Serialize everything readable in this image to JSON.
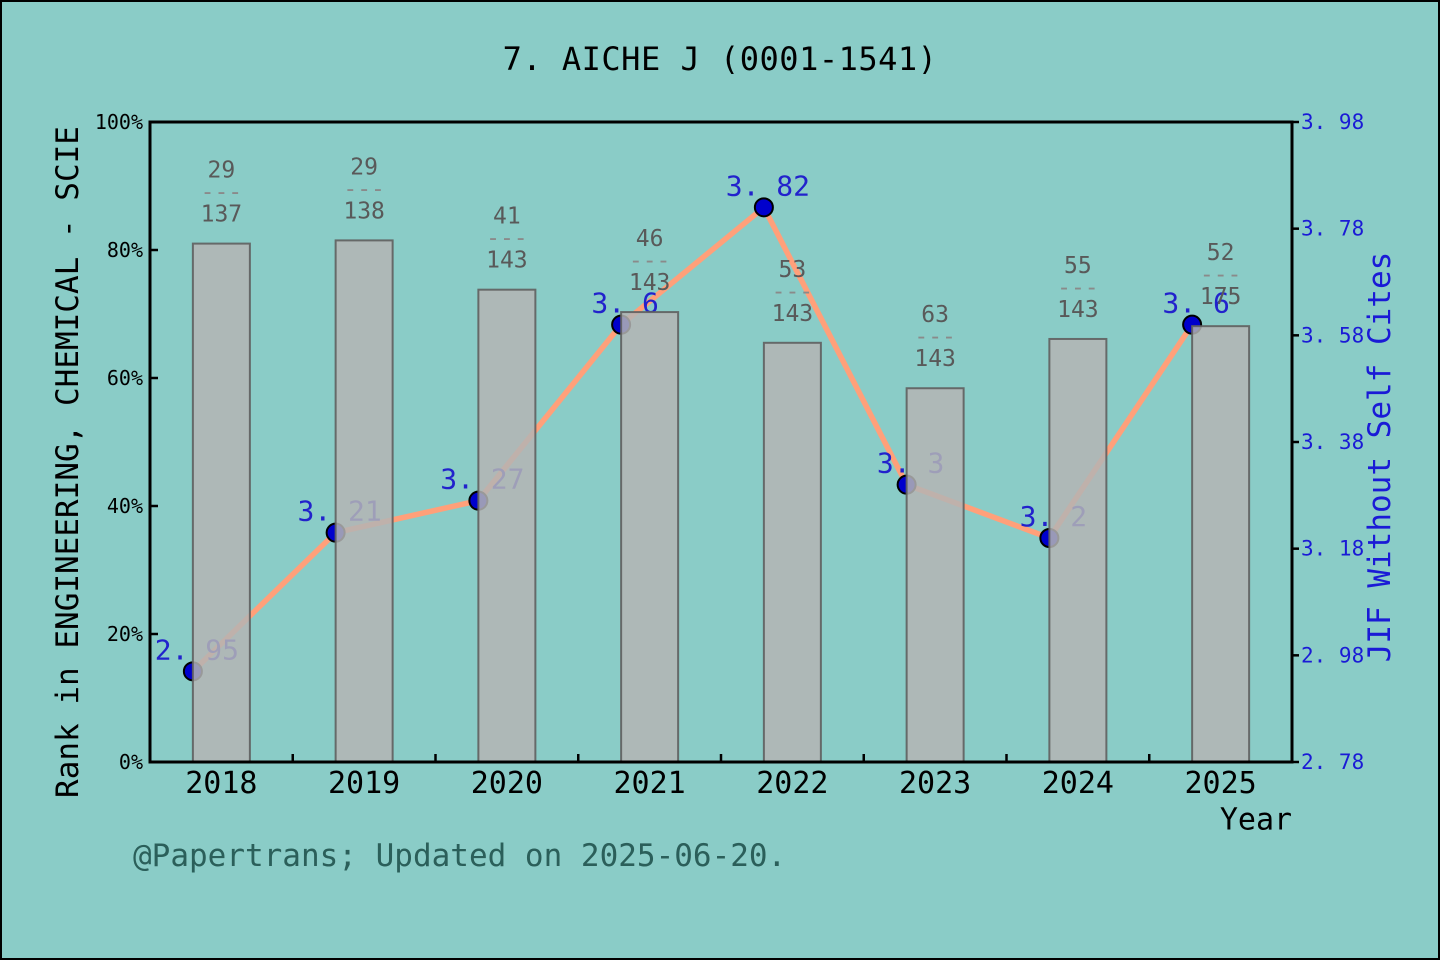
{
  "title": "7. AICHE J (0001-1541)",
  "footer": "@Papertrans; Updated on 2025-06-20.",
  "colors": {
    "background": "#8ACCC7",
    "bar_fill": "#B4B4B4",
    "bar_edge": "#5F5F5F",
    "line": "#FFA07A",
    "marker_fill": "#0000CD",
    "marker_edge": "#000000",
    "value_label": "#2222CC",
    "right_axis_text": "#1A1AD6",
    "fraction_text": "#595959",
    "fraction_dash": "#8A8A8A",
    "axis": "#000000",
    "footer_text": "#2B5F5A"
  },
  "chart_data": {
    "type": "bar+line combo",
    "title": "7. AICHE J (0001-1541)",
    "categories": [
      "2018",
      "2019",
      "2020",
      "2021",
      "2022",
      "2023",
      "2024",
      "2025"
    ],
    "grid": false,
    "legend": false,
    "x_axis": {
      "label": "Year"
    },
    "left_axis": {
      "label": "Rank in ENGINEERING, CHEMICAL - SCIE",
      "tick_labels": [
        "0%",
        "20%",
        "40%",
        "60%",
        "80%",
        "100%"
      ],
      "range": [
        0,
        100
      ],
      "unit": "%"
    },
    "right_axis": {
      "label": "JIF Without Self Cites",
      "tick_labels": [
        "2. 78",
        "2. 98",
        "3. 18",
        "3. 38",
        "3. 58",
        "3. 78",
        "3. 98"
      ],
      "range": [
        2.78,
        3.98
      ]
    },
    "series": [
      {
        "name": "Rank in category (bar, left axis)",
        "type": "bar",
        "values_percent": [
          81.0,
          81.5,
          73.8,
          70.3,
          65.5,
          58.4,
          66.1,
          68.1
        ],
        "rank_labels": [
          {
            "numerator": "29",
            "dash": "---",
            "denominator": "137"
          },
          {
            "numerator": "29",
            "dash": "---",
            "denominator": "138"
          },
          {
            "numerator": "41",
            "dash": "---",
            "denominator": "143"
          },
          {
            "numerator": "46",
            "dash": "---",
            "denominator": "143"
          },
          {
            "numerator": "53",
            "dash": "---",
            "denominator": "143"
          },
          {
            "numerator": "63",
            "dash": "---",
            "denominator": "143"
          },
          {
            "numerator": "55",
            "dash": "---",
            "denominator": "143"
          },
          {
            "numerator": "52",
            "dash": "---",
            "denominator": "175"
          }
        ]
      },
      {
        "name": "JIF Without Self Cites (line, right axis)",
        "type": "line",
        "values": [
          2.95,
          3.21,
          3.27,
          3.6,
          3.82,
          3.3,
          3.2,
          3.6
        ],
        "point_labels": [
          "2. 95",
          "3. 21",
          "3. 27",
          "3. 6",
          "3. 82",
          "3. 3",
          "3. 2",
          "3. 6"
        ]
      }
    ]
  }
}
